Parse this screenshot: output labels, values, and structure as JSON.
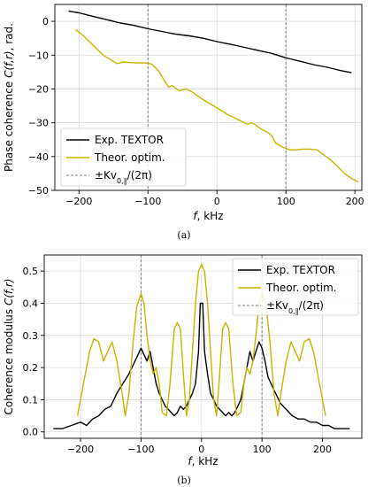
{
  "chart_data": [
    {
      "type": "line",
      "panel_label": "(a)",
      "xlabel": "f, kHz",
      "ylabel": "Phase coherence C(f,r), rad.",
      "xlim": [
        -235,
        210
      ],
      "ylim": [
        -50,
        5
      ],
      "xticks": [
        -200,
        -100,
        0,
        100,
        200
      ],
      "yticks": [
        0,
        -10,
        -20,
        -30,
        -40,
        -50
      ],
      "xtick_labels": [
        "−200",
        "−100",
        "0",
        "100",
        "200"
      ],
      "ytick_labels": [
        "0",
        "−10",
        "−20",
        "−30",
        "−40",
        "−50"
      ],
      "grid": true,
      "legend_position": "lower-left",
      "vlines": [
        -100,
        100
      ],
      "legend": [
        {
          "label": "Exp. TEXTOR",
          "style": "solid",
          "color": "#000000"
        },
        {
          "label": "Theor. optim.",
          "style": "solid",
          "color": "#c8b400"
        },
        {
          "label": "±Kv0,∥/(2π)",
          "style": "dashed",
          "color": "#808080"
        }
      ],
      "series": [
        {
          "name": "Exp. TEXTOR",
          "color": "#000000",
          "x": [
            -215,
            -200,
            -180,
            -160,
            -140,
            -120,
            -100,
            -80,
            -60,
            -40,
            -20,
            0,
            20,
            40,
            60,
            80,
            100,
            120,
            140,
            160,
            180,
            195
          ],
          "y": [
            3.0,
            2.5,
            1.5,
            0.5,
            -0.5,
            -1.2,
            -2.2,
            -3.0,
            -3.8,
            -4.3,
            -5.0,
            -6.0,
            -6.8,
            -7.7,
            -8.6,
            -9.5,
            -10.8,
            -11.8,
            -12.8,
            -13.6,
            -14.6,
            -15.2
          ]
        },
        {
          "name": "Theor. optim.",
          "color": "#c8b400",
          "x": [
            -205,
            -195,
            -185,
            -175,
            -165,
            -155,
            -145,
            -135,
            -125,
            -115,
            -105,
            -95,
            -85,
            -75,
            -70,
            -65,
            -55,
            -45,
            -35,
            -25,
            -15,
            -5,
            5,
            15,
            25,
            35,
            45,
            50,
            55,
            65,
            75,
            80,
            85,
            95,
            105,
            115,
            125,
            135,
            145,
            155,
            165,
            175,
            185,
            195,
            205
          ],
          "y": [
            -2.5,
            -4.0,
            -6.0,
            -8.0,
            -10.0,
            -11.2,
            -12.5,
            -12.0,
            -12.2,
            -12.3,
            -12.3,
            -12.6,
            -14.5,
            -18.0,
            -19.5,
            -19.0,
            -20.5,
            -20.0,
            -21.0,
            -22.5,
            -23.8,
            -25.0,
            -26.2,
            -27.5,
            -28.5,
            -29.5,
            -30.5,
            -30.0,
            -30.5,
            -32.0,
            -33.0,
            -34.0,
            -36.0,
            -37.2,
            -38.0,
            -38.0,
            -37.8,
            -37.8,
            -38.0,
            -39.5,
            -41.0,
            -43.0,
            -45.0,
            -46.5,
            -47.5
          ]
        }
      ]
    },
    {
      "type": "line",
      "panel_label": "(b)",
      "xlabel": "f, kHz",
      "ylabel": "Coherence modulus C(f,r)",
      "xlim": [
        -260,
        265
      ],
      "ylim": [
        -0.02,
        0.55
      ],
      "xticks": [
        -200,
        -100,
        0,
        100,
        200
      ],
      "yticks": [
        0.0,
        0.1,
        0.2,
        0.3,
        0.4,
        0.5
      ],
      "xtick_labels": [
        "−200",
        "−100",
        "0",
        "100",
        "200"
      ],
      "ytick_labels": [
        "0.0",
        "0.1",
        "0.2",
        "0.3",
        "0.4",
        "0.5"
      ],
      "grid": true,
      "legend_position": "top-right",
      "vlines": [
        -100,
        100
      ],
      "legend": [
        {
          "label": "Exp. TEXTOR",
          "style": "solid",
          "color": "#000000"
        },
        {
          "label": "Theor. optim.",
          "style": "solid",
          "color": "#c8b400"
        },
        {
          "label": "±Kv0,∥/(2π)",
          "style": "dashed",
          "color": "#808080"
        }
      ],
      "series": [
        {
          "name": "Exp. TEXTOR",
          "color": "#000000",
          "x": [
            -245,
            -230,
            -215,
            -200,
            -190,
            -180,
            -170,
            -160,
            -150,
            -140,
            -130,
            -120,
            -110,
            -100,
            -95,
            -90,
            -85,
            -80,
            -75,
            -70,
            -65,
            -60,
            -55,
            -50,
            -45,
            -40,
            -35,
            -30,
            -25,
            -20,
            -15,
            -10,
            -5,
            -2,
            0,
            2,
            5,
            10,
            15,
            20,
            25,
            30,
            35,
            40,
            45,
            50,
            55,
            60,
            65,
            70,
            75,
            80,
            85,
            90,
            95,
            100,
            105,
            110,
            120,
            130,
            140,
            150,
            160,
            170,
            180,
            190,
            200,
            210,
            220,
            230,
            245
          ],
          "y": [
            0.01,
            0.01,
            0.02,
            0.03,
            0.02,
            0.04,
            0.05,
            0.07,
            0.08,
            0.12,
            0.15,
            0.18,
            0.22,
            0.26,
            0.24,
            0.22,
            0.25,
            0.2,
            0.15,
            0.12,
            0.1,
            0.08,
            0.07,
            0.06,
            0.05,
            0.06,
            0.08,
            0.07,
            0.08,
            0.1,
            0.12,
            0.15,
            0.25,
            0.4,
            0.4,
            0.4,
            0.25,
            0.18,
            0.12,
            0.1,
            0.08,
            0.07,
            0.06,
            0.05,
            0.06,
            0.05,
            0.06,
            0.08,
            0.1,
            0.15,
            0.2,
            0.25,
            0.22,
            0.25,
            0.28,
            0.26,
            0.22,
            0.17,
            0.13,
            0.09,
            0.07,
            0.05,
            0.04,
            0.04,
            0.03,
            0.03,
            0.02,
            0.02,
            0.01,
            0.01,
            0.01
          ]
        },
        {
          "name": "Theor. optim.",
          "color": "#c8b400",
          "x": [
            -205,
            -195,
            -185,
            -178,
            -170,
            -162,
            -155,
            -148,
            -140,
            -132,
            -126,
            -120,
            -113,
            -107,
            -100,
            -95,
            -90,
            -85,
            -80,
            -75,
            -70,
            -65,
            -58,
            -52,
            -45,
            -40,
            -35,
            -30,
            -25,
            -20,
            -15,
            -10,
            -5,
            0,
            5,
            10,
            15,
            20,
            25,
            30,
            35,
            40,
            45,
            52,
            58,
            65,
            70,
            75,
            80,
            85,
            90,
            95,
            100,
            107,
            113,
            120,
            126,
            132,
            140,
            148,
            155,
            162,
            170,
            178,
            185,
            195,
            205
          ],
          "y": [
            0.05,
            0.15,
            0.25,
            0.29,
            0.28,
            0.22,
            0.25,
            0.28,
            0.22,
            0.13,
            0.05,
            0.12,
            0.28,
            0.39,
            0.43,
            0.4,
            0.3,
            0.22,
            0.18,
            0.2,
            0.15,
            0.06,
            0.05,
            0.15,
            0.32,
            0.34,
            0.32,
            0.18,
            0.05,
            0.1,
            0.25,
            0.4,
            0.5,
            0.52,
            0.5,
            0.4,
            0.25,
            0.1,
            0.05,
            0.18,
            0.32,
            0.34,
            0.32,
            0.15,
            0.05,
            0.06,
            0.15,
            0.2,
            0.18,
            0.22,
            0.3,
            0.4,
            0.43,
            0.39,
            0.28,
            0.12,
            0.05,
            0.13,
            0.22,
            0.28,
            0.25,
            0.22,
            0.28,
            0.29,
            0.25,
            0.15,
            0.05
          ]
        }
      ]
    }
  ]
}
